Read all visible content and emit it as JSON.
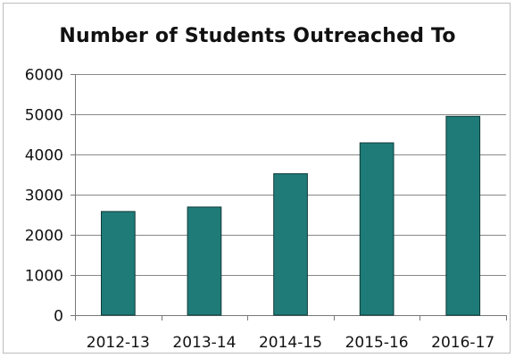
{
  "chart_data": {
    "type": "bar",
    "title": "Number of Students Outreached To",
    "categories": [
      "2012-13",
      "2013-14",
      "2014-15",
      "2015-16",
      "2016-17"
    ],
    "values": [
      2580,
      2690,
      3520,
      4290,
      4950
    ],
    "ylim": [
      0,
      6000
    ],
    "yticks": [
      0,
      1000,
      2000,
      3000,
      4000,
      5000,
      6000
    ],
    "xlabel": "",
    "ylabel": "",
    "grid": true,
    "legend": "none",
    "bar_color": "#1f7b78",
    "bar_edge_color": "#0e3a38",
    "grid_color": "#888888",
    "axis_color": "#777777"
  }
}
